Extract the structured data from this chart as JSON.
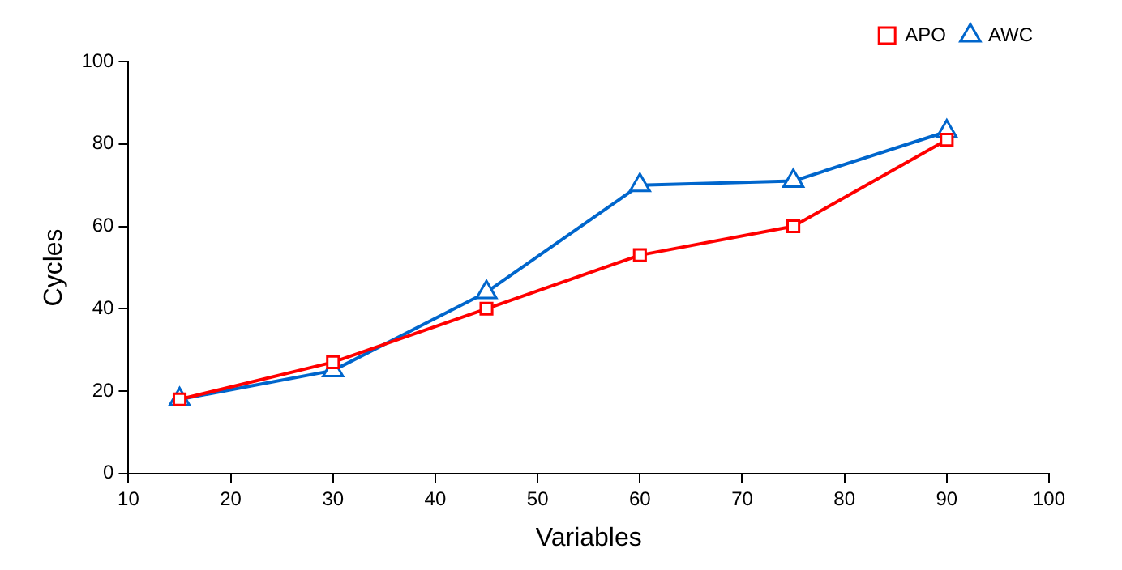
{
  "chart_data": {
    "type": "line",
    "xlabel": "Variables",
    "ylabel": "Cycles",
    "x": [
      15,
      30,
      45,
      60,
      75,
      90
    ],
    "series": [
      {
        "name": "APO",
        "color": "#ff0000",
        "marker": "square",
        "values": [
          18,
          27,
          40,
          53,
          60,
          81
        ]
      },
      {
        "name": "AWC",
        "color": "#0066cc",
        "marker": "triangle",
        "values": [
          18,
          25,
          44,
          70,
          71,
          83
        ]
      }
    ],
    "xlim": [
      10,
      100
    ],
    "xticks": [
      10,
      20,
      30,
      40,
      50,
      60,
      70,
      80,
      90,
      100
    ],
    "ylim": [
      0,
      100
    ],
    "yticks": [
      0,
      20,
      40,
      60,
      80,
      100
    ],
    "grid": false,
    "legend": "top right",
    "line_style": "solid"
  }
}
